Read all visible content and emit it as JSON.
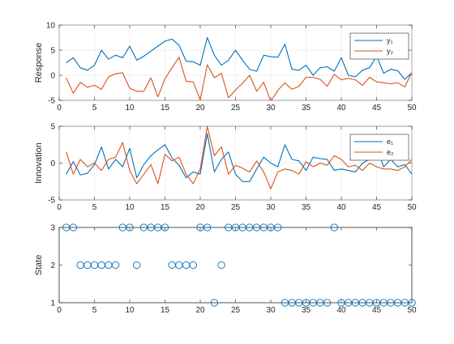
{
  "chart_data": [
    {
      "type": "line",
      "ylabel": "Response",
      "xlim": [
        0,
        50
      ],
      "ylim": [
        -5,
        10
      ],
      "xticks": [
        0,
        5,
        10,
        15,
        20,
        25,
        30,
        35,
        40,
        45,
        50
      ],
      "yticks": [
        -5,
        0,
        5,
        10
      ],
      "grid": true,
      "legend": "top-right",
      "x": [
        1,
        2,
        3,
        4,
        5,
        6,
        7,
        8,
        9,
        10,
        11,
        12,
        13,
        14,
        15,
        16,
        17,
        18,
        19,
        20,
        21,
        22,
        23,
        24,
        25,
        26,
        27,
        28,
        29,
        30,
        31,
        32,
        33,
        34,
        35,
        36,
        37,
        38,
        39,
        40,
        41,
        42,
        43,
        44,
        45,
        46,
        47,
        48,
        49,
        50
      ],
      "series": [
        {
          "name": "y₁",
          "color": "#0072BD",
          "values": [
            2.5,
            3.5,
            1.5,
            1.0,
            2.0,
            5.0,
            3.2,
            4.0,
            3.5,
            5.8,
            3.0,
            3.8,
            4.8,
            5.8,
            6.8,
            7.2,
            6.0,
            2.8,
            2.7,
            2.0,
            7.5,
            4.0,
            2.0,
            3.0,
            5.0,
            3.0,
            1.2,
            0.8,
            4.0,
            3.7,
            3.6,
            6.2,
            1.2,
            1.0,
            2.0,
            0.0,
            1.5,
            1.7,
            0.8,
            3.5,
            0.0,
            -0.3,
            1.0,
            1.5,
            3.8,
            0.4,
            1.2,
            0.9,
            -0.8,
            0.5
          ]
        },
        {
          "name": "y₂",
          "color": "#D95319",
          "values": [
            -0.5,
            -3.6,
            -1.4,
            -2.4,
            -2.0,
            -2.8,
            -0.3,
            0.3,
            0.5,
            -2.6,
            -3.2,
            -3.2,
            -0.5,
            -4.3,
            -0.7,
            1.5,
            3.6,
            -1.2,
            -1.3,
            -4.9,
            2.1,
            -0.5,
            0.4,
            -4.5,
            -2.9,
            -1.6,
            0.0,
            -3.2,
            -1.4,
            -5.2,
            -3.0,
            -1.5,
            -2.8,
            -2.2,
            -0.4,
            -0.4,
            -0.8,
            -2.2,
            0.2,
            -0.9,
            -0.6,
            -0.9,
            -2.0,
            -0.4,
            -1.3,
            -1.5,
            -1.7,
            -1.5,
            -2.3,
            0.6
          ]
        }
      ]
    },
    {
      "type": "line",
      "ylabel": "Innovation",
      "xlim": [
        0,
        50
      ],
      "ylim": [
        -5,
        5
      ],
      "xticks": [
        0,
        5,
        10,
        15,
        20,
        25,
        30,
        35,
        40,
        45,
        50
      ],
      "yticks": [
        -5,
        0,
        5
      ],
      "grid": true,
      "legend": "top-right",
      "x": [
        1,
        2,
        3,
        4,
        5,
        6,
        7,
        8,
        9,
        10,
        11,
        12,
        13,
        14,
        15,
        16,
        17,
        18,
        19,
        20,
        21,
        22,
        23,
        24,
        25,
        26,
        27,
        28,
        29,
        30,
        31,
        32,
        33,
        34,
        35,
        36,
        37,
        38,
        39,
        40,
        41,
        42,
        43,
        44,
        45,
        46,
        47,
        48,
        49,
        50
      ],
      "series": [
        {
          "name": "e₁",
          "color": "#0072BD",
          "values": [
            -1.5,
            0.2,
            -1.6,
            -1.4,
            -0.2,
            2.2,
            -0.8,
            0.5,
            -0.5,
            2.0,
            -2.0,
            -0.2,
            1.0,
            1.8,
            2.5,
            0.7,
            -0.3,
            -2.0,
            -1.2,
            -1.5,
            4.0,
            -1.2,
            0.5,
            1.5,
            -1.5,
            -2.5,
            -2.5,
            -0.8,
            0.8,
            0.0,
            -0.5,
            2.5,
            0.5,
            0.3,
            -1.0,
            0.8,
            0.6,
            0.5,
            -1.0,
            -0.8,
            -1.0,
            -1.2,
            0.0,
            0.5,
            2.2,
            -0.5,
            0.5,
            -0.5,
            -0.2,
            -1.5
          ]
        },
        {
          "name": "e₂",
          "color": "#D95319",
          "values": [
            1.5,
            -1.5,
            0.5,
            -0.5,
            0.0,
            -1.0,
            0.5,
            0.8,
            2.8,
            -1.0,
            -2.8,
            -1.5,
            -0.2,
            -2.8,
            1.2,
            0.3,
            0.8,
            -1.5,
            -2.8,
            -0.8,
            5.0,
            1.0,
            2.2,
            -1.5,
            -0.3,
            -0.7,
            -1.2,
            0.3,
            -1.2,
            -3.5,
            -1.2,
            -0.8,
            -1.0,
            -1.5,
            0.2,
            -0.5,
            0.0,
            -0.3,
            1.0,
            0.5,
            -0.5,
            -0.3,
            -1.0,
            0.0,
            -0.5,
            -0.8,
            -0.8,
            -1.0,
            -0.5,
            0.5
          ]
        }
      ]
    },
    {
      "type": "scatter",
      "ylabel": "State",
      "xlim": [
        0,
        50
      ],
      "ylim": [
        1,
        3
      ],
      "xticks": [
        0,
        5,
        10,
        15,
        20,
        25,
        30,
        35,
        40,
        45,
        50
      ],
      "yticks": [
        1,
        2,
        3
      ],
      "grid": false,
      "marker": "open-circle",
      "color": "#0072BD",
      "x": [
        1,
        2,
        3,
        4,
        5,
        6,
        7,
        8,
        9,
        10,
        11,
        12,
        13,
        14,
        15,
        16,
        17,
        18,
        19,
        20,
        21,
        22,
        23,
        24,
        25,
        26,
        27,
        28,
        29,
        30,
        31,
        32,
        33,
        34,
        35,
        36,
        37,
        38,
        39,
        40,
        41,
        42,
        43,
        44,
        45,
        46,
        47,
        48,
        49,
        50
      ],
      "values": [
        3,
        3,
        2,
        2,
        2,
        2,
        2,
        2,
        3,
        3,
        2,
        3,
        3,
        3,
        3,
        2,
        2,
        2,
        2,
        3,
        3,
        1,
        2,
        3,
        3,
        3,
        3,
        3,
        3,
        3,
        3,
        1,
        1,
        1,
        1,
        1,
        1,
        1,
        3,
        1,
        1,
        1,
        1,
        1,
        1,
        1,
        1,
        1,
        1,
        1
      ]
    }
  ]
}
